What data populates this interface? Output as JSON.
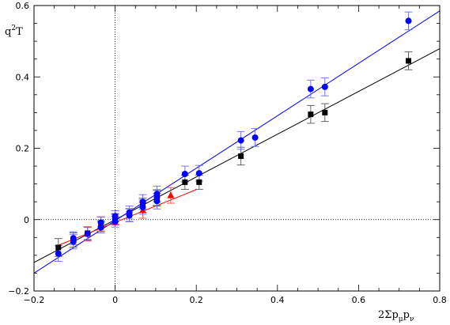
{
  "chart_data": {
    "type": "scatter",
    "xlabel": "2Σp",
    "xlabel_sub": "μ",
    "xlabel_p2": "p",
    "xlabel_sub2": "ν",
    "ylabel": "T",
    "ylabel_pre": "q",
    "ylabel_sup": "2",
    "xlim": [
      -0.2,
      0.8
    ],
    "ylim": [
      -0.2,
      0.6
    ],
    "x_ticks": [
      -0.2,
      0,
      0.2,
      0.4,
      0.6,
      0.8
    ],
    "x_tick_labels": [
      "−0.2",
      "0",
      "0.2",
      "0.4",
      "0.6",
      "0.8"
    ],
    "y_ticks": [
      -0.2,
      0,
      0.2,
      0.4,
      0.6
    ],
    "y_tick_labels": [
      "−0.2",
      "0",
      "0.2",
      "0.4",
      "0.6"
    ],
    "reference_lines": {
      "x0": true,
      "y0": true,
      "style": "dotted"
    },
    "series": [
      {
        "marker": "square",
        "color": "#000000",
        "errorbar_color": "#555555",
        "fit": {
          "x": [
            -0.2,
            0.8
          ],
          "y": [
            -0.12,
            0.479
          ]
        },
        "points": [
          {
            "x": -0.14,
            "y": -0.078,
            "err": 0.025
          },
          {
            "x": -0.103,
            "y": -0.057,
            "err": 0.02
          },
          {
            "x": -0.068,
            "y": -0.038,
            "err": 0.018
          },
          {
            "x": -0.035,
            "y": -0.018,
            "err": 0.015
          },
          {
            "x": 0.0,
            "y": 0.0,
            "err": 0.015
          },
          {
            "x": 0.035,
            "y": 0.013,
            "err": 0.018
          },
          {
            "x": 0.068,
            "y": 0.04,
            "err": 0.02
          },
          {
            "x": 0.103,
            "y": 0.06,
            "err": 0.022
          },
          {
            "x": 0.172,
            "y": 0.105,
            "err": 0.02
          },
          {
            "x": 0.207,
            "y": 0.105,
            "err": 0.02
          },
          {
            "x": 0.31,
            "y": 0.178,
            "err": 0.025
          },
          {
            "x": 0.482,
            "y": 0.295,
            "err": 0.025
          },
          {
            "x": 0.517,
            "y": 0.3,
            "err": 0.025
          },
          {
            "x": 0.723,
            "y": 0.445,
            "err": 0.025
          }
        ]
      },
      {
        "marker": "circle",
        "color": "#0000ff",
        "errorbar_color": "#6666ff",
        "fit": {
          "x": [
            -0.2,
            0.8
          ],
          "y": [
            -0.15,
            0.585
          ]
        },
        "points": [
          {
            "x": -0.14,
            "y": -0.095,
            "err": 0.022
          },
          {
            "x": -0.103,
            "y": -0.062,
            "err": 0.02
          },
          {
            "x": -0.103,
            "y": -0.052,
            "err": 0.018
          },
          {
            "x": -0.068,
            "y": -0.04,
            "err": 0.018
          },
          {
            "x": -0.035,
            "y": -0.022,
            "err": 0.015
          },
          {
            "x": -0.035,
            "y": -0.008,
            "err": 0.015
          },
          {
            "x": 0.0,
            "y": 0.002,
            "err": 0.015
          },
          {
            "x": 0.0,
            "y": -0.006,
            "err": 0.015
          },
          {
            "x": 0.0,
            "y": 0.01,
            "err": 0.015
          },
          {
            "x": 0.035,
            "y": 0.012,
            "err": 0.018
          },
          {
            "x": 0.035,
            "y": 0.02,
            "err": 0.018
          },
          {
            "x": 0.068,
            "y": 0.035,
            "err": 0.02
          },
          {
            "x": 0.068,
            "y": 0.05,
            "err": 0.02
          },
          {
            "x": 0.103,
            "y": 0.052,
            "err": 0.022
          },
          {
            "x": 0.103,
            "y": 0.062,
            "err": 0.022
          },
          {
            "x": 0.103,
            "y": 0.072,
            "err": 0.022
          },
          {
            "x": 0.172,
            "y": 0.128,
            "err": 0.022
          },
          {
            "x": 0.207,
            "y": 0.13,
            "err": 0.022
          },
          {
            "x": 0.31,
            "y": 0.222,
            "err": 0.025
          },
          {
            "x": 0.345,
            "y": 0.23,
            "err": 0.025
          },
          {
            "x": 0.482,
            "y": 0.366,
            "err": 0.025
          },
          {
            "x": 0.517,
            "y": 0.372,
            "err": 0.025
          },
          {
            "x": 0.723,
            "y": 0.557,
            "err": 0.025
          }
        ]
      },
      {
        "marker": "triangle",
        "color": "#ff0000",
        "errorbar_color": "#ff4444",
        "fit": {
          "x": [
            -0.14,
            0.2
          ],
          "y": [
            -0.072,
            0.084
          ]
        },
        "points": [
          {
            "x": -0.068,
            "y": -0.04,
            "err": 0.02
          },
          {
            "x": -0.035,
            "y": -0.012,
            "err": 0.02
          },
          {
            "x": 0.0,
            "y": 0.0,
            "err": 0.015
          },
          {
            "x": 0.068,
            "y": 0.026,
            "err": 0.022
          },
          {
            "x": 0.137,
            "y": 0.068,
            "err": 0.022
          }
        ]
      }
    ]
  }
}
